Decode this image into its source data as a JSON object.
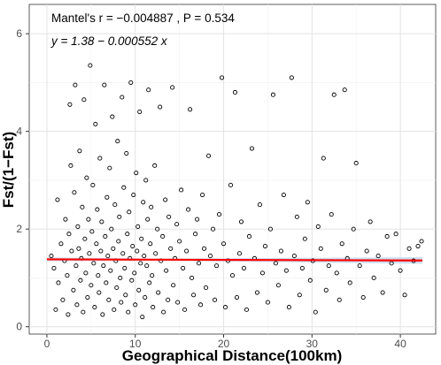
{
  "chart_data": {
    "type": "scatter",
    "xlabel": "Geographical Distance(100km)",
    "ylabel": "Fst/(1−Fst)",
    "xlim": [
      -2,
      44
    ],
    "ylim": [
      -0.15,
      6.6
    ],
    "x_ticks": [
      0,
      10,
      20,
      30,
      40
    ],
    "y_ticks": [
      0,
      2,
      4,
      6
    ],
    "x_tick_labels": [
      "0",
      "10",
      "20",
      "30",
      "40"
    ],
    "y_tick_labels": [
      "0",
      "2",
      "4",
      "6"
    ],
    "grid": true,
    "legend": "none",
    "annotations": {
      "mantel": "Mantel's r = −0.004887 , P = 0.534",
      "equation": "y = 1.38 − 0.000552 x"
    },
    "regression": {
      "intercept": 1.38,
      "slope": -0.000552,
      "x_range": [
        0,
        42.5
      ],
      "color": "#ff0000"
    },
    "confidence_band": {
      "color": "#c6dbef"
    },
    "point_style": {
      "stroke": "#000000",
      "fill": "none"
    },
    "points": [
      [
        0.5,
        1.45
      ],
      [
        0.8,
        1.2
      ],
      [
        1.0,
        0.35
      ],
      [
        1.2,
        2.6
      ],
      [
        1.3,
        0.9
      ],
      [
        1.6,
        1.7
      ],
      [
        1.8,
        0.55
      ],
      [
        2.0,
        1.35
      ],
      [
        2.1,
        2.2
      ],
      [
        2.3,
        1.05
      ],
      [
        2.4,
        0.25
      ],
      [
        2.5,
        1.9
      ],
      [
        2.6,
        4.55
      ],
      [
        2.7,
        3.3
      ],
      [
        2.8,
        1.55
      ],
      [
        3.0,
        0.75
      ],
      [
        3.1,
        2.75
      ],
      [
        3.2,
        4.95
      ],
      [
        3.3,
        1.25
      ],
      [
        3.4,
        0.45
      ],
      [
        3.5,
        2.05
      ],
      [
        3.6,
        1.6
      ],
      [
        3.7,
        3.6
      ],
      [
        3.8,
        0.95
      ],
      [
        3.9,
        1.4
      ],
      [
        4.0,
        2.45
      ],
      [
        4.1,
        0.3
      ],
      [
        4.2,
        4.65
      ],
      [
        4.3,
        1.8
      ],
      [
        4.4,
        1.1
      ],
      [
        4.5,
        3.05
      ],
      [
        4.6,
        0.6
      ],
      [
        4.7,
        2.2
      ],
      [
        4.8,
        1.5
      ],
      [
        4.9,
        5.35
      ],
      [
        5.0,
        0.85
      ],
      [
        5.1,
        1.95
      ],
      [
        5.2,
        2.9
      ],
      [
        5.3,
        1.3
      ],
      [
        5.4,
        0.4
      ],
      [
        5.5,
        4.15
      ],
      [
        5.6,
        1.7
      ],
      [
        5.7,
        2.4
      ],
      [
        5.8,
        1.05
      ],
      [
        5.9,
        0.7
      ],
      [
        6.0,
        3.45
      ],
      [
        6.1,
        1.55
      ],
      [
        6.2,
        2.15
      ],
      [
        6.3,
        0.25
      ],
      [
        6.4,
        1.25
      ],
      [
        6.5,
        4.95
      ],
      [
        6.6,
        1.85
      ],
      [
        6.7,
        0.9
      ],
      [
        6.8,
        2.65
      ],
      [
        6.9,
        1.45
      ],
      [
        7.0,
        0.55
      ],
      [
        7.1,
        3.25
      ],
      [
        7.2,
        1.15
      ],
      [
        7.3,
        2.0
      ],
      [
        7.4,
        4.3
      ],
      [
        7.5,
        1.6
      ],
      [
        7.6,
        0.35
      ],
      [
        7.7,
        2.5
      ],
      [
        7.8,
        1.35
      ],
      [
        7.9,
        0.8
      ],
      [
        8.0,
        3.8
      ],
      [
        8.1,
        1.75
      ],
      [
        8.2,
        2.25
      ],
      [
        8.3,
        1.0
      ],
      [
        8.4,
        0.5
      ],
      [
        8.5,
        4.7
      ],
      [
        8.6,
        1.5
      ],
      [
        8.7,
        2.85
      ],
      [
        8.8,
        1.2
      ],
      [
        8.9,
        0.65
      ],
      [
        9.0,
        3.55
      ],
      [
        9.1,
        1.9
      ],
      [
        9.2,
        0.3
      ],
      [
        9.3,
        2.35
      ],
      [
        9.4,
        1.4
      ],
      [
        9.5,
        5.0
      ],
      [
        9.6,
        0.95
      ],
      [
        9.7,
        1.65
      ],
      [
        9.8,
        2.7
      ],
      [
        9.9,
        1.1
      ],
      [
        10.0,
        0.45
      ],
      [
        10.1,
        3.15
      ],
      [
        10.2,
        1.55
      ],
      [
        10.3,
        2.05
      ],
      [
        10.4,
        0.75
      ],
      [
        10.5,
        4.4
      ],
      [
        10.6,
        1.3
      ],
      [
        10.7,
        1.8
      ],
      [
        10.8,
        0.2
      ],
      [
        10.9,
        2.55
      ],
      [
        11.0,
        1.45
      ],
      [
        11.1,
        0.6
      ],
      [
        11.2,
        3.0
      ],
      [
        11.3,
        1.25
      ],
      [
        11.4,
        2.2
      ],
      [
        11.5,
        4.85
      ],
      [
        11.6,
        0.9
      ],
      [
        11.7,
        1.7
      ],
      [
        11.8,
        2.45
      ],
      [
        11.9,
        1.05
      ],
      [
        12.0,
        0.4
      ],
      [
        12.2,
        3.3
      ],
      [
        12.3,
        1.5
      ],
      [
        12.5,
        2.0
      ],
      [
        12.6,
        0.7
      ],
      [
        12.8,
        4.5
      ],
      [
        12.9,
        1.35
      ],
      [
        13.1,
        1.85
      ],
      [
        13.2,
        0.3
      ],
      [
        13.4,
        2.6
      ],
      [
        13.5,
        1.15
      ],
      [
        13.7,
        0.55
      ],
      [
        13.8,
        2.25
      ],
      [
        14.0,
        1.6
      ],
      [
        14.2,
        4.9
      ],
      [
        14.3,
        0.85
      ],
      [
        14.5,
        1.4
      ],
      [
        14.7,
        2.1
      ],
      [
        14.8,
        0.5
      ],
      [
        15.0,
        1.75
      ],
      [
        15.2,
        2.8
      ],
      [
        15.4,
        1.2
      ],
      [
        15.6,
        0.35
      ],
      [
        15.8,
        1.55
      ],
      [
        16.0,
        2.4
      ],
      [
        16.2,
        4.45
      ],
      [
        16.4,
        1.0
      ],
      [
        16.6,
        0.65
      ],
      [
        16.8,
        1.9
      ],
      [
        17.0,
        2.2
      ],
      [
        17.2,
        1.3
      ],
      [
        17.4,
        0.45
      ],
      [
        17.6,
        2.7
      ],
      [
        17.8,
        1.6
      ],
      [
        18.0,
        0.8
      ],
      [
        18.3,
        3.5
      ],
      [
        18.5,
        1.45
      ],
      [
        18.8,
        2.0
      ],
      [
        19.0,
        0.55
      ],
      [
        19.2,
        1.25
      ],
      [
        19.5,
        2.3
      ],
      [
        19.8,
        5.1
      ],
      [
        20.0,
        1.7
      ],
      [
        20.2,
        0.4
      ],
      [
        20.5,
        1.35
      ],
      [
        20.8,
        2.9
      ],
      [
        21.0,
        1.05
      ],
      [
        21.3,
        4.8
      ],
      [
        21.5,
        0.6
      ],
      [
        21.8,
        1.5
      ],
      [
        22.0,
        2.15
      ],
      [
        22.3,
        1.2
      ],
      [
        22.6,
        0.35
      ],
      [
        22.9,
        1.85
      ],
      [
        23.2,
        3.65
      ],
      [
        23.5,
        1.4
      ],
      [
        23.8,
        0.7
      ],
      [
        24.1,
        2.5
      ],
      [
        24.4,
        1.1
      ],
      [
        24.7,
        1.65
      ],
      [
        25.0,
        0.5
      ],
      [
        25.3,
        2.0
      ],
      [
        25.6,
        4.75
      ],
      [
        25.9,
        1.3
      ],
      [
        26.2,
        0.85
      ],
      [
        26.5,
        1.55
      ],
      [
        26.8,
        2.7
      ],
      [
        27.1,
        1.15
      ],
      [
        27.4,
        0.4
      ],
      [
        27.7,
        5.1
      ],
      [
        28.0,
        1.45
      ],
      [
        28.3,
        2.25
      ],
      [
        28.6,
        0.65
      ],
      [
        28.9,
        1.2
      ],
      [
        29.2,
        1.8
      ],
      [
        29.5,
        2.55
      ],
      [
        29.8,
        0.95
      ],
      [
        30.1,
        1.35
      ],
      [
        30.4,
        0.3
      ],
      [
        30.7,
        2.05
      ],
      [
        31.0,
        1.6
      ],
      [
        31.3,
        3.45
      ],
      [
        31.6,
        0.75
      ],
      [
        31.9,
        1.25
      ],
      [
        32.2,
        2.3
      ],
      [
        32.5,
        4.75
      ],
      [
        32.8,
        1.1
      ],
      [
        33.1,
        0.55
      ],
      [
        33.4,
        1.7
      ],
      [
        33.7,
        4.85
      ],
      [
        34.0,
        1.4
      ],
      [
        34.3,
        0.9
      ],
      [
        34.7,
        2.0
      ],
      [
        35.0,
        3.35
      ],
      [
        35.4,
        1.25
      ],
      [
        35.8,
        0.6
      ],
      [
        36.2,
        1.55
      ],
      [
        36.6,
        2.15
      ],
      [
        37.0,
        1.0
      ],
      [
        37.5,
        1.45
      ],
      [
        38.0,
        0.7
      ],
      [
        38.5,
        1.85
      ],
      [
        39.0,
        1.3
      ],
      [
        39.5,
        1.9
      ],
      [
        40.0,
        1.15
      ],
      [
        40.5,
        0.65
      ],
      [
        41.0,
        1.6
      ],
      [
        41.5,
        1.35
      ],
      [
        42.0,
        1.65
      ],
      [
        42.4,
        1.75
      ]
    ]
  }
}
